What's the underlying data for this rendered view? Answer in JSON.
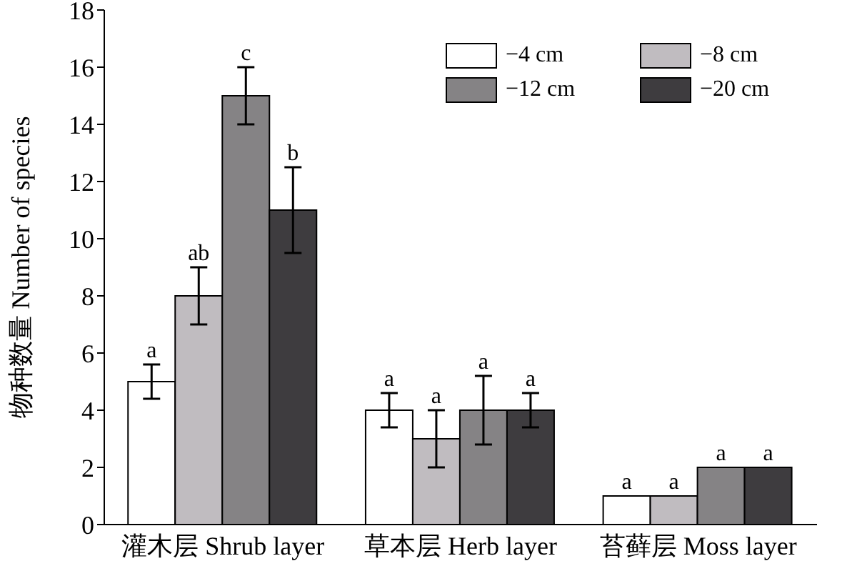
{
  "chart_data": {
    "type": "bar",
    "ylabel": "物种数量 Number of species",
    "categories": [
      "灌木层 Shrub layer",
      "草本层 Herb layer",
      "苔藓层 Moss layer"
    ],
    "series": [
      {
        "name": "−4 cm",
        "color": "#ffffff",
        "values": [
          5,
          4,
          1
        ],
        "errors": [
          0.6,
          0.6,
          null
        ],
        "value_labels": [
          "a",
          "a",
          "a"
        ]
      },
      {
        "name": "−8 cm",
        "color": "#c0bcc0",
        "values": [
          8,
          3,
          1
        ],
        "errors": [
          1,
          1,
          null
        ],
        "value_labels": [
          "ab",
          "a",
          "a"
        ]
      },
      {
        "name": "−12 cm",
        "color": "#858385",
        "values": [
          15,
          4,
          2
        ],
        "errors": [
          1,
          1.2,
          null
        ],
        "value_labels": [
          "c",
          "a",
          "a"
        ]
      },
      {
        "name": "−20 cm",
        "color": "#3e3c3f",
        "values": [
          11,
          4,
          2
        ],
        "errors": [
          1.5,
          0.6,
          null
        ],
        "value_labels": [
          "b",
          "a",
          "a"
        ]
      }
    ],
    "ylim": [
      0,
      18
    ],
    "yticks": [
      0,
      2,
      4,
      6,
      8,
      10,
      12,
      14,
      16,
      18
    ],
    "grid": false,
    "legend": "top right"
  }
}
